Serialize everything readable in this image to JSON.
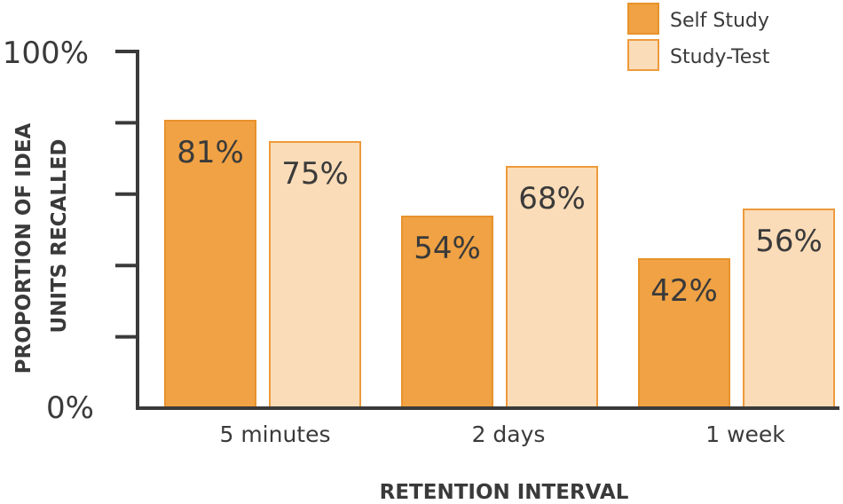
{
  "chart_data": {
    "type": "bar",
    "title": "",
    "categories": [
      "5 minutes",
      "2 days",
      "1 week"
    ],
    "series": [
      {
        "name": "Self Study",
        "values": [
          81,
          54,
          42
        ],
        "labels": [
          "81%",
          "54%",
          "42%"
        ],
        "color": "#F0A244",
        "border": "#E8922C"
      },
      {
        "name": "Study-Test",
        "values": [
          75,
          68,
          56
        ],
        "labels": [
          "75%",
          "68%",
          "56%"
        ],
        "color": "#FBDCB8",
        "border": "#EE9A3A"
      }
    ],
    "xlabel": "RETENTION INTERVAL",
    "ylabel_lines": [
      "PROPORTION OF IDEA",
      "UNITS RECALLED"
    ],
    "ylim": [
      0,
      100
    ],
    "y_tick_labels": {
      "min": "0%",
      "max": "100%"
    },
    "y_ticks": [
      0,
      20,
      40,
      60,
      80,
      100
    ],
    "grid": false,
    "legend_placement": "top-right"
  }
}
